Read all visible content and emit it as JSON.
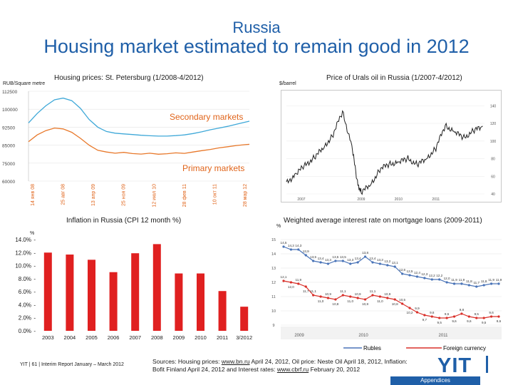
{
  "slide": {
    "kicker": "Russia",
    "title": "Housing market estimated to remain good in 2012"
  },
  "housing": {
    "title": "Housing prices: St. Petersburg (1/2008-4/2012)",
    "unit": "RUB/Square metre",
    "secondary_label": "Secondary markets",
    "primary_label": "Primary markets",
    "colors": {
      "secondary": "#3ea8d8",
      "primary": "#e8782a",
      "label": "#e0641a"
    }
  },
  "oil": {
    "title": "Price of Urals oil in Russia (1/2007-4/2012)",
    "unit": "$/barrel",
    "color": "#222222"
  },
  "inflation": {
    "title": "Inflation in Russia (CPI 12 month %)",
    "unit": "%",
    "color": "#e02020"
  },
  "mortgage": {
    "title": "Weighted average interest rate on mortgage loans (2009-2011)",
    "unit": "%",
    "rubles_label": "Rubles",
    "foreign_label": "Foreign currency",
    "colors": {
      "rubles": "#4a74b8",
      "foreign": "#d9302a"
    }
  },
  "footer": {
    "page": "YIT | 61 | Interim Report January – March 2012",
    "sources_line1_prefix": "Sources: Housing prices: ",
    "sources_line1_link": "www.bn.ru",
    "sources_line1_suffix": " April 24, 2012, Oil price: Neste Oil April 18, 2012, Inflation:",
    "sources_line2_prefix": "Bofit Finland April 24, 2012 and Interest rates: ",
    "sources_line2_link": "www.cbrf.ru",
    "sources_line2_suffix": " February 20, 2012",
    "logo_text": "YIT",
    "appendices": "Appendices"
  },
  "chart_data": [
    {
      "id": "housing",
      "type": "line",
      "title": "Housing prices: St. Petersburg (1/2008-4/2012)",
      "ylabel": "RUB/Square metre",
      "ylim": [
        60000,
        112500
      ],
      "y_ticks": [
        "112500",
        "100000",
        "92500",
        "85000",
        "75000",
        "60000"
      ],
      "x_ticks": [
        "14 янв 08",
        "25 авг 08",
        "13 апр 09",
        "25 ноя 09",
        "12 июл 10",
        "28 фев 11",
        "10 окт 11",
        "28 мар 12"
      ],
      "series": [
        {
          "name": "Secondary markets",
          "x": [
            0,
            2,
            4,
            6,
            8,
            10,
            12,
            14,
            16,
            18,
            20,
            22,
            24,
            26,
            28,
            30,
            32,
            34,
            36,
            38,
            40,
            42,
            44,
            46,
            48,
            50,
            51
          ],
          "values": [
            94000,
            99500,
            104000,
            107500,
            108500,
            107000,
            102500,
            96000,
            91500,
            89000,
            88000,
            87600,
            87200,
            86800,
            86500,
            86300,
            86300,
            86600,
            87000,
            87800,
            88800,
            90000,
            91000,
            92000,
            93200,
            94400,
            95000
          ]
        },
        {
          "name": "Primary markets",
          "x": [
            0,
            2,
            4,
            6,
            8,
            10,
            12,
            14,
            16,
            18,
            20,
            22,
            24,
            26,
            28,
            30,
            32,
            34,
            36,
            38,
            40,
            42,
            44,
            46,
            48,
            50,
            51
          ],
          "values": [
            83000,
            87000,
            89500,
            91000,
            90500,
            88500,
            85000,
            81000,
            78000,
            77000,
            76300,
            76800,
            76100,
            75800,
            76300,
            75700,
            76000,
            76500,
            76200,
            77000,
            77800,
            78500,
            79400,
            80100,
            80800,
            81300,
            81500
          ]
        }
      ]
    },
    {
      "id": "oil",
      "type": "line",
      "title": "Price of Urals oil in Russia (1/2007-4/2012)",
      "ylabel": "$/barrel",
      "ylim": [
        40,
        150
      ],
      "y_ticks": [
        40,
        60,
        80,
        100,
        120,
        140
      ],
      "x_ticks": [
        "2007",
        "2009",
        "2010",
        "2011"
      ],
      "series": [
        {
          "name": "Urals",
          "x": [
            2007.0,
            2007.25,
            2007.5,
            2007.75,
            2008.0,
            2008.25,
            2008.5,
            2008.75,
            2008.9,
            2009.0,
            2009.25,
            2009.5,
            2009.75,
            2010.0,
            2010.25,
            2010.5,
            2010.75,
            2011.0,
            2011.25,
            2011.5,
            2011.75,
            2012.0,
            2012.25
          ],
          "values": [
            52,
            63,
            72,
            82,
            92,
            108,
            133,
            95,
            52,
            42,
            50,
            68,
            74,
            76,
            80,
            73,
            80,
            92,
            118,
            110,
            104,
            111,
            117
          ]
        }
      ]
    },
    {
      "id": "inflation",
      "type": "bar",
      "title": "Inflation in Russia (CPI 12 month %)",
      "ylabel": "%",
      "ylim": [
        0,
        14
      ],
      "y_ticks": [
        "0.0%",
        "2.0%",
        "4.0%",
        "6.0%",
        "8.0%",
        "10.0%",
        "12.0%",
        "14.0%"
      ],
      "categories": [
        "2003",
        "2004",
        "2005",
        "2006",
        "2007",
        "2008",
        "2009",
        "2010",
        "2011",
        "3/2012"
      ],
      "values": [
        12.0,
        11.7,
        10.9,
        9.0,
        11.9,
        13.3,
        8.8,
        8.8,
        6.1,
        3.7
      ]
    },
    {
      "id": "mortgage",
      "type": "line",
      "title": "Weighted average interest rate on mortgage loans (2009-2011)",
      "ylabel": "%",
      "ylim": [
        9,
        15
      ],
      "y_ticks": [
        9,
        10,
        11,
        12,
        13,
        14,
        15
      ],
      "x_ticks": [
        "2009",
        "2010",
        "2011"
      ],
      "series": [
        {
          "name": "Rubles",
          "values": [
            14.5,
            14.3,
            14.3,
            13.9,
            13.5,
            13.4,
            13.3,
            13.5,
            13.5,
            13.3,
            13.4,
            13.8,
            13.4,
            13.3,
            13.2,
            13.1,
            12.6,
            12.5,
            12.4,
            12.3,
            12.2,
            12.2,
            12.0,
            11.9,
            11.9,
            11.8,
            11.7,
            11.8,
            11.9,
            11.9
          ],
          "labels": [
            "14,5",
            "14,3",
            "14,3",
            "13,9",
            "13,5",
            "13,4",
            "13,3",
            "13,5",
            "13,5",
            "13,3",
            "13,4",
            "13,8",
            "13,4",
            "13,3",
            "13,2",
            "13,1",
            "12,6",
            "12,5",
            "12,4",
            "12,3",
            "12,2",
            "12,2",
            "12,0",
            "11,9",
            "11,9",
            "11,8",
            "11,7",
            "11,8",
            "11,9",
            "11,9"
          ]
        },
        {
          "name": "Foreign currency",
          "values": [
            12.1,
            12.0,
            11.9,
            11.7,
            11.1,
            11.0,
            10.9,
            10.8,
            11.1,
            11.0,
            10.9,
            10.8,
            11.1,
            11.0,
            10.9,
            10.8,
            10.5,
            10.2,
            9.9,
            9.7,
            9.6,
            9.5,
            9.5,
            9.6,
            9.8,
            9.6,
            9.5,
            9.5,
            9.6,
            9.6
          ],
          "labels": [
            "12,1",
            "12,0",
            "11,9",
            "11,7",
            "11,1",
            "11,0",
            "10,9",
            "10,8",
            "11,1",
            "11,0",
            "10,9",
            "10,8",
            "11,1",
            "11,0",
            "10,9",
            "10,8",
            "10,5",
            "10,2",
            "9,9",
            "9,7",
            "9,6",
            "9,5",
            "9,5",
            "9,6",
            "9,8",
            "9,6",
            "9,5",
            "9,5",
            "9,6",
            "9,6"
          ]
        }
      ]
    }
  ]
}
